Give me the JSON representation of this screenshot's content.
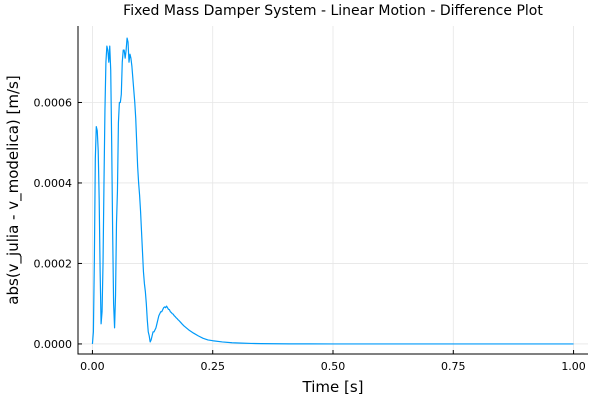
{
  "chart_data": {
    "type": "line",
    "title": "Fixed Mass Damper System - Linear Motion - Difference Plot",
    "xlabel": "Time [s]",
    "ylabel": "abs(v_julia - v_modelica) [m/s]",
    "xlim": [
      -0.03,
      1.03
    ],
    "ylim": [
      -2.5e-05,
      0.00079
    ],
    "xticks": [
      0.0,
      0.25,
      0.5,
      0.75,
      1.0
    ],
    "xtick_labels": [
      "0.00",
      "0.25",
      "0.50",
      "0.75",
      "1.00"
    ],
    "yticks": [
      0.0,
      0.0002,
      0.0004,
      0.0006
    ],
    "ytick_labels": [
      "0.0000",
      "0.0002",
      "0.0004",
      "0.0006"
    ],
    "grid": true,
    "legend": "none",
    "colors": {
      "series": "#009af9",
      "axis": "#000000",
      "grid": "#e6e6e6"
    },
    "series": [
      {
        "x": [
          0.0,
          0.002,
          0.004,
          0.006,
          0.008,
          0.01,
          0.012,
          0.014,
          0.016,
          0.018,
          0.02,
          0.022,
          0.024,
          0.026,
          0.028,
          0.03,
          0.032,
          0.034,
          0.036,
          0.038,
          0.04,
          0.042,
          0.044,
          0.046,
          0.048,
          0.05,
          0.052,
          0.054,
          0.056,
          0.058,
          0.06,
          0.062,
          0.064,
          0.066,
          0.068,
          0.07,
          0.072,
          0.074,
          0.076,
          0.078,
          0.08,
          0.082,
          0.084,
          0.086,
          0.088,
          0.09,
          0.092,
          0.094,
          0.096,
          0.098,
          0.1,
          0.102,
          0.104,
          0.106,
          0.108,
          0.11,
          0.112,
          0.114,
          0.116,
          0.118,
          0.12,
          0.122,
          0.124,
          0.126,
          0.128,
          0.13,
          0.132,
          0.134,
          0.136,
          0.138,
          0.14,
          0.142,
          0.144,
          0.146,
          0.148,
          0.15,
          0.152,
          0.154,
          0.156,
          0.158,
          0.16,
          0.162,
          0.164,
          0.166,
          0.168,
          0.17,
          0.172,
          0.174,
          0.176,
          0.178,
          0.18,
          0.183,
          0.186,
          0.19,
          0.195,
          0.2,
          0.21,
          0.22,
          0.23,
          0.24,
          0.25,
          0.27,
          0.29,
          0.31,
          0.33,
          0.35,
          0.38,
          0.41,
          0.45,
          0.5,
          0.6,
          0.7,
          0.8,
          0.9,
          1.0
        ],
        "y": [
          0.0,
          3e-05,
          0.00021,
          0.00046,
          0.00054,
          0.00053,
          0.00048,
          0.00036,
          0.00018,
          5e-05,
          8e-05,
          0.0002,
          0.0004,
          0.00058,
          0.0007,
          0.00074,
          0.00073,
          0.0007,
          0.00074,
          0.00068,
          0.0005,
          0.00028,
          0.0001,
          4e-05,
          0.00012,
          0.0003,
          0.00038,
          0.00055,
          0.0006,
          0.0006,
          0.00062,
          0.0007,
          0.00073,
          0.00073,
          0.00071,
          0.00073,
          0.00076,
          0.00075,
          0.0007,
          0.00072,
          0.00071,
          0.00069,
          0.00066,
          0.00063,
          0.0006,
          0.00056,
          0.0005,
          0.00044,
          0.0004,
          0.00037,
          0.00033,
          0.00028,
          0.00023,
          0.00018,
          0.00015,
          0.00013,
          0.0001,
          6e-05,
          3e-05,
          2e-05,
          5e-06,
          1e-05,
          2e-05,
          3e-05,
          3e-05,
          3.5e-05,
          4e-05,
          5e-05,
          6e-05,
          7e-05,
          7.5e-05,
          8e-05,
          8e-05,
          8.5e-05,
          9e-05,
          9.2e-05,
          9e-05,
          9.4e-05,
          9e-05,
          8.6e-05,
          8.5e-05,
          8e-05,
          7.8e-05,
          7.5e-05,
          7.4e-05,
          7e-05,
          6.8e-05,
          6.5e-05,
          6.3e-05,
          6e-05,
          5.8e-05,
          5.4e-05,
          5e-05,
          4.5e-05,
          4e-05,
          3.5e-05,
          2.7e-05,
          2e-05,
          1.4e-05,
          1e-05,
          8e-06,
          5e-06,
          3e-06,
          2e-06,
          1.2e-06,
          8e-07,
          4e-07,
          2e-07,
          1e-07,
          0.0,
          0.0,
          0.0,
          0.0,
          0.0,
          0.0
        ]
      }
    ]
  }
}
